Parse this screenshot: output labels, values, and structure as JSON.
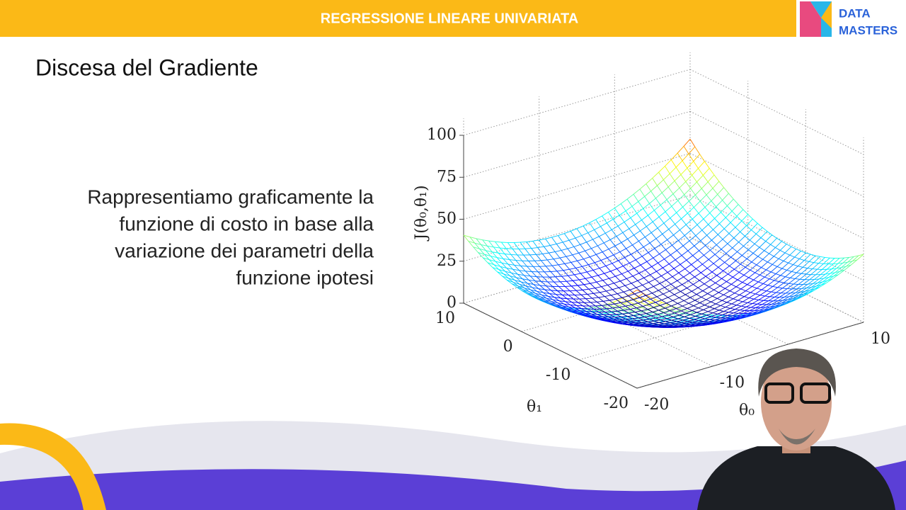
{
  "header": {
    "title": "REGRESSIONE LINEARE UNIVARIATA",
    "logo": [
      "DATA",
      "MASTERS"
    ]
  },
  "slide": {
    "title": "Discesa del Gradiente",
    "body": [
      "Rappresentiamo graficamente la",
      "funzione di costo in base alla",
      "variazione dei parametri della",
      "funzione ipotesi"
    ]
  },
  "plot": {
    "z_label": "J(θ₀,θ₁)",
    "theta1_label": "θ₁",
    "theta0_label": "θ₀",
    "z_ticks": [
      "0",
      "25",
      "50",
      "75",
      "100"
    ],
    "theta1_ticks": [
      "10",
      "0",
      "-10",
      "-20"
    ],
    "theta0_ticks": [
      "-20",
      "-10",
      "10"
    ]
  }
}
